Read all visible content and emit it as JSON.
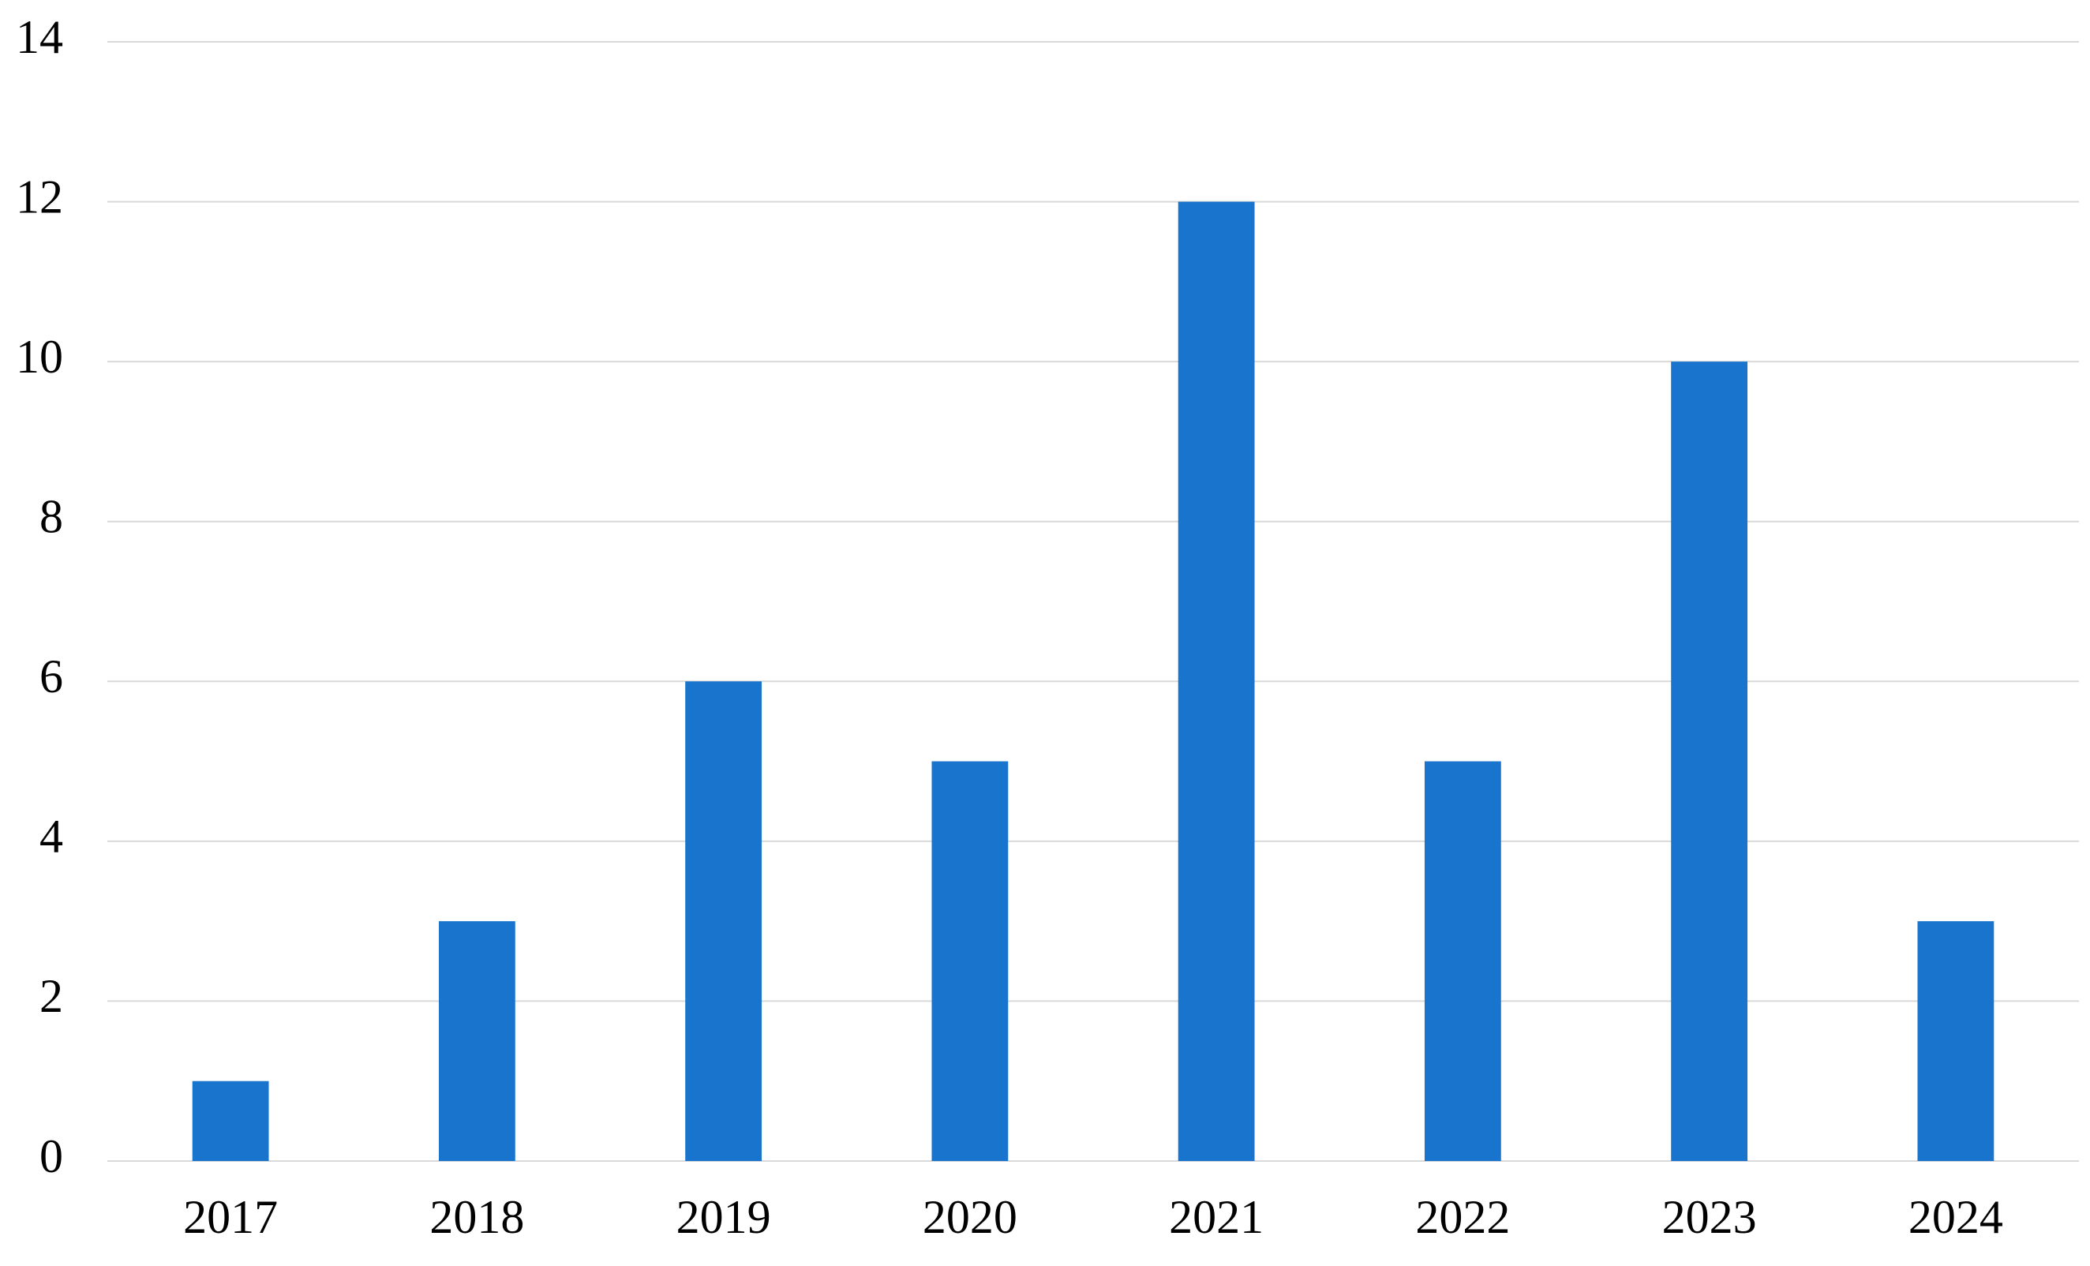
{
  "chart_data": {
    "type": "bar",
    "categories": [
      "2017",
      "2018",
      "2019",
      "2020",
      "2021",
      "2022",
      "2023",
      "2024"
    ],
    "values": [
      1,
      3,
      6,
      5,
      12,
      5,
      10,
      3
    ],
    "color": "#1874cd",
    "ylim": [
      0,
      14
    ],
    "yticks": [
      0,
      2,
      4,
      6,
      8,
      10,
      12,
      14
    ],
    "grid": true
  }
}
